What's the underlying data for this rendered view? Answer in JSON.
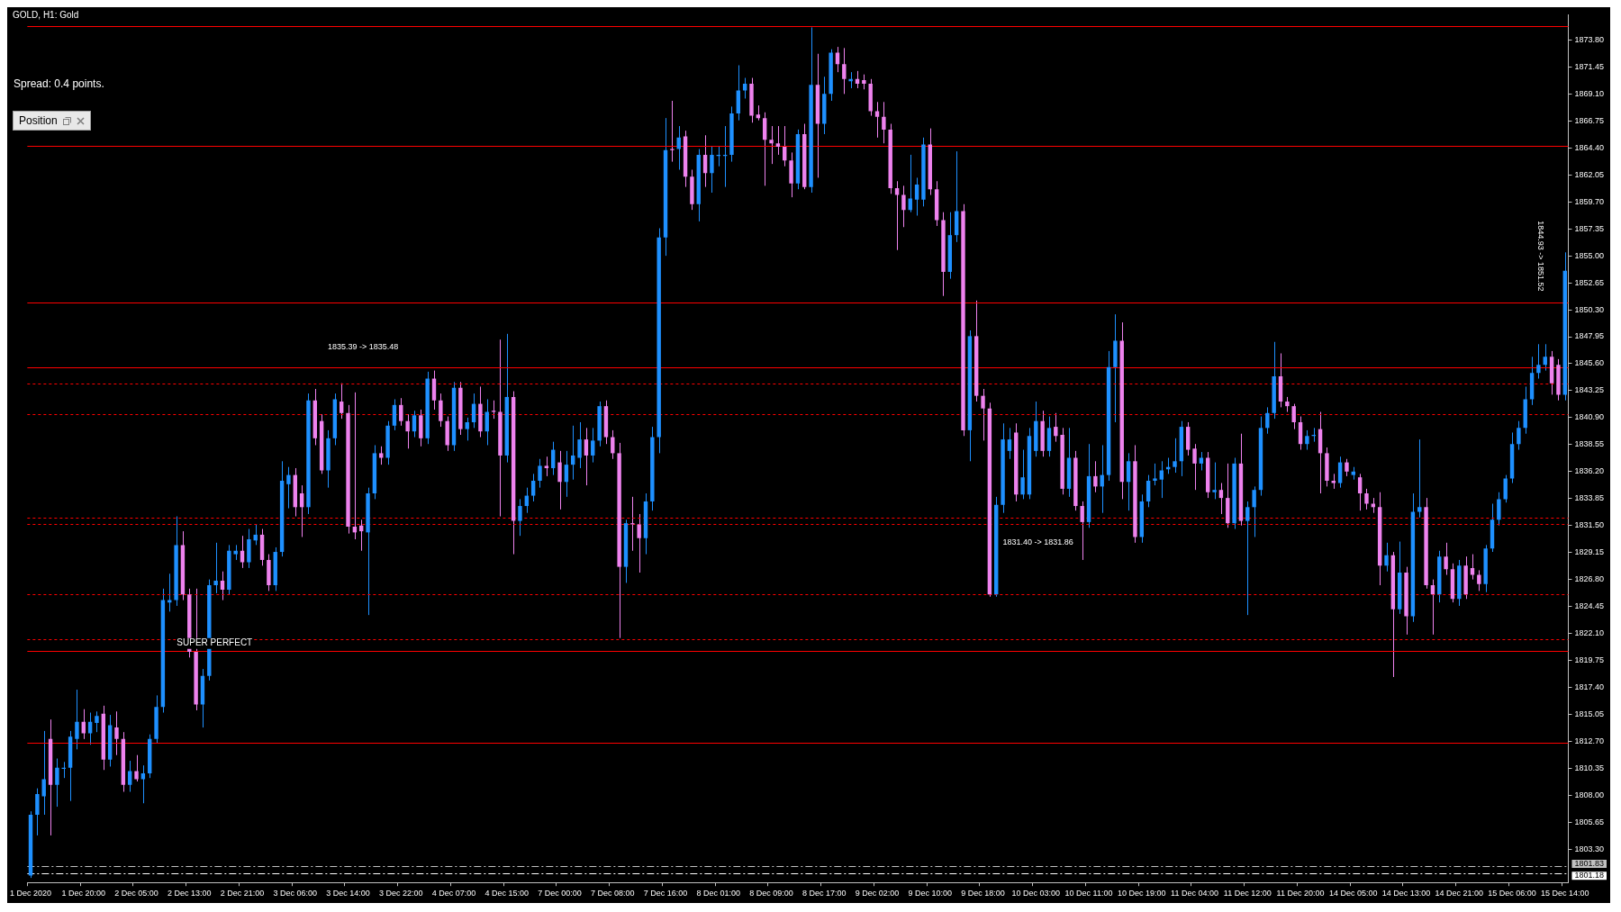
{
  "chart_data": {
    "type": "candlestick",
    "title": "GOLD, H1: Gold",
    "categories": [
      "1 Dec 2020",
      null,
      null,
      null,
      null,
      null,
      null,
      null,
      "1 Dec 20:00",
      null,
      null,
      null,
      null,
      null,
      null,
      null,
      "2 Dec 05:00",
      null,
      null,
      null,
      null,
      null,
      null,
      null,
      "2 Dec 13:00",
      null,
      null,
      null,
      null,
      null,
      null,
      null,
      "2 Dec 21:00",
      null,
      null,
      null,
      null,
      null,
      null,
      null,
      "3 Dec 06:00",
      null,
      null,
      null,
      null,
      null,
      null,
      null,
      "3 Dec 14:00",
      null,
      null,
      null,
      null,
      null,
      null,
      null,
      "3 Dec 22:00",
      null,
      null,
      null,
      null,
      null,
      null,
      null,
      "4 Dec 07:00",
      null,
      null,
      null,
      null,
      null,
      null,
      null,
      "4 Dec 15:00",
      null,
      null,
      null,
      null,
      null,
      null,
      null,
      "7 Dec 00:00",
      null,
      null,
      null,
      null,
      null,
      null,
      null,
      "7 Dec 08:00",
      null,
      null,
      null,
      null,
      null,
      null,
      null,
      "7 Dec 16:00",
      null,
      null,
      null,
      null,
      null,
      null,
      null,
      "8 Dec 01:00",
      null,
      null,
      null,
      null,
      null,
      null,
      null,
      "8 Dec 09:00",
      null,
      null,
      null,
      null,
      null,
      null,
      null,
      "8 Dec 17:00",
      null,
      null,
      null,
      null,
      null,
      null,
      null,
      "9 Dec 02:00",
      null,
      null,
      null,
      null,
      null,
      null,
      null,
      "9 Dec 10:00",
      null,
      null,
      null,
      null,
      null,
      null,
      null,
      "9 Dec 18:00",
      null,
      null,
      null,
      null,
      null,
      null,
      null,
      "10 Dec 03:00",
      null,
      null,
      null,
      null,
      null,
      null,
      null,
      "10 Dec 11:00",
      null,
      null,
      null,
      null,
      null,
      null,
      null,
      "10 Dec 19:00",
      null,
      null,
      null,
      null,
      null,
      null,
      null,
      "11 Dec 04:00",
      null,
      null,
      null,
      null,
      null,
      null,
      null,
      "11 Dec 12:00",
      null,
      null,
      null,
      null,
      null,
      null,
      null,
      "11 Dec 20:00",
      null,
      null,
      null,
      null,
      null,
      null,
      null,
      "14 Dec 05:00",
      null,
      null,
      null,
      null,
      null,
      null,
      null,
      "14 Dec 13:00",
      null,
      null,
      null,
      null,
      null,
      null,
      null,
      "14 Dec 21:00",
      null,
      null,
      null,
      null,
      null,
      null,
      null,
      "15 Dec 06:00",
      null,
      null,
      null,
      null,
      null,
      null,
      null,
      "15 Dec 14:00"
    ],
    "ohlc": [
      [
        1801.0,
        1806.6,
        1800.8,
        1806.3
      ],
      [
        1806.3,
        1808.6,
        1804.5,
        1808.1
      ],
      [
        1807.9,
        1813.6,
        1806.3,
        1809.4
      ],
      [
        1812.9,
        1814.6,
        1804.5,
        1808.9
      ],
      [
        1808.9,
        1811.2,
        1807.0,
        1810.4
      ],
      [
        1810.3,
        1810.9,
        1809.5,
        1810.4
      ],
      [
        1810.4,
        1813.6,
        1807.5,
        1813.1
      ],
      [
        1812.9,
        1817.2,
        1812.0,
        1814.4
      ],
      [
        1814.4,
        1815.5,
        1812.9,
        1813.4
      ],
      [
        1813.4,
        1815.2,
        1812.4,
        1814.4
      ],
      [
        1814.3,
        1815.3,
        1813.5,
        1814.9
      ],
      [
        1815.1,
        1815.8,
        1810.2,
        1811.1
      ],
      [
        1811.1,
        1815.0,
        1810.5,
        1814.1
      ],
      [
        1813.9,
        1815.3,
        1811.5,
        1812.9
      ],
      [
        1812.9,
        1813.5,
        1808.3,
        1808.9
      ],
      [
        1808.9,
        1811.0,
        1808.3,
        1810.1
      ],
      [
        1810.1,
        1811.5,
        1809.2,
        1809.4
      ],
      [
        1809.4,
        1810.6,
        1807.3,
        1809.9
      ],
      [
        1809.9,
        1813.3,
        1809.5,
        1812.9
      ],
      [
        1812.9,
        1816.7,
        1812.5,
        1815.7
      ],
      [
        1815.7,
        1826.0,
        1815.2,
        1825.0
      ],
      [
        1824.8,
        1827.3,
        1824.0,
        1825.0
      ],
      [
        1825.0,
        1832.3,
        1824.5,
        1829.8
      ],
      [
        1829.8,
        1831.0,
        1825.0,
        1825.5
      ],
      [
        1825.5,
        1826.0,
        1820.0,
        1820.5
      ],
      [
        1820.5,
        1826.0,
        1815.4,
        1815.9
      ],
      [
        1815.9,
        1819.0,
        1813.9,
        1818.4
      ],
      [
        1818.4,
        1826.8,
        1818.0,
        1826.3
      ],
      [
        1826.3,
        1830.0,
        1825.6,
        1826.7
      ],
      [
        1826.7,
        1827.5,
        1825.0,
        1825.9
      ],
      [
        1825.9,
        1829.8,
        1825.5,
        1829.3
      ],
      [
        1829.0,
        1829.8,
        1828.5,
        1829.3
      ],
      [
        1829.3,
        1830.6,
        1827.8,
        1828.3
      ],
      [
        1828.3,
        1831.2,
        1827.8,
        1830.3
      ],
      [
        1830.2,
        1831.6,
        1829.8,
        1830.7
      ],
      [
        1830.7,
        1831.2,
        1828.0,
        1828.5
      ],
      [
        1828.5,
        1829.0,
        1825.8,
        1826.3
      ],
      [
        1826.3,
        1829.6,
        1825.8,
        1829.2
      ],
      [
        1829.2,
        1837.1,
        1828.8,
        1835.4
      ],
      [
        1835.1,
        1836.6,
        1833.0,
        1835.9
      ],
      [
        1835.9,
        1836.5,
        1832.3,
        1833.1
      ],
      [
        1834.3,
        1835.0,
        1830.5,
        1833.1
      ],
      [
        1833.1,
        1843.0,
        1832.5,
        1842.4
      ],
      [
        1842.4,
        1843.4,
        1838.5,
        1839.1
      ],
      [
        1840.6,
        1841.2,
        1836.0,
        1836.3
      ],
      [
        1836.3,
        1839.8,
        1834.8,
        1839.1
      ],
      [
        1839.1,
        1843.0,
        1838.5,
        1842.5
      ],
      [
        1842.3,
        1843.9,
        1840.8,
        1841.3
      ],
      [
        1841.3,
        1842.0,
        1830.8,
        1831.4
      ],
      [
        1831.4,
        1843.1,
        1830.3,
        1830.9
      ],
      [
        1831.5,
        1832.0,
        1829.3,
        1831.0
      ],
      [
        1830.9,
        1834.8,
        1823.7,
        1834.3
      ],
      [
        1834.3,
        1838.5,
        1833.8,
        1837.8
      ],
      [
        1837.8,
        1838.4,
        1836.8,
        1837.4
      ],
      [
        1837.4,
        1840.6,
        1836.8,
        1840.2
      ],
      [
        1840.2,
        1842.5,
        1839.8,
        1842.0
      ],
      [
        1842.0,
        1842.6,
        1840.2,
        1840.6
      ],
      [
        1840.6,
        1841.2,
        1838.2,
        1839.7
      ],
      [
        1839.7,
        1841.5,
        1839.2,
        1841.1
      ],
      [
        1841.1,
        1841.6,
        1838.4,
        1839.1
      ],
      [
        1839.1,
        1844.9,
        1838.6,
        1844.3
      ],
      [
        1844.3,
        1845.0,
        1841.6,
        1842.4
      ],
      [
        1842.4,
        1843.0,
        1840.1,
        1840.6
      ],
      [
        1840.6,
        1841.0,
        1838.0,
        1838.5
      ],
      [
        1838.5,
        1844.0,
        1838.0,
        1843.5
      ],
      [
        1843.5,
        1844.0,
        1839.4,
        1839.9
      ],
      [
        1839.9,
        1840.9,
        1838.9,
        1840.5
      ],
      [
        1840.5,
        1843.0,
        1840.0,
        1842.1
      ],
      [
        1842.1,
        1843.6,
        1839.2,
        1839.7
      ],
      [
        1839.7,
        1842.5,
        1838.5,
        1841.4
      ],
      [
        1841.5,
        1842.4,
        1840.8,
        1841.4
      ],
      [
        1841.4,
        1847.7,
        1832.3,
        1837.6
      ],
      [
        1837.6,
        1848.2,
        1837.0,
        1842.7
      ],
      [
        1842.7,
        1843.2,
        1829.0,
        1831.9
      ],
      [
        1831.9,
        1833.8,
        1830.6,
        1833.2
      ],
      [
        1833.2,
        1834.8,
        1832.6,
        1834.1
      ],
      [
        1834.1,
        1836.0,
        1833.6,
        1835.4
      ],
      [
        1835.4,
        1837.3,
        1834.8,
        1836.7
      ],
      [
        1836.7,
        1837.5,
        1835.8,
        1836.5
      ],
      [
        1836.5,
        1838.8,
        1835.9,
        1838.1
      ],
      [
        1837.0,
        1838.0,
        1832.9,
        1835.3
      ],
      [
        1835.3,
        1838.0,
        1834.0,
        1836.8
      ],
      [
        1836.8,
        1840.2,
        1835.5,
        1837.6
      ],
      [
        1837.4,
        1840.5,
        1836.5,
        1839.0
      ],
      [
        1839.0,
        1840.0,
        1835.0,
        1837.6
      ],
      [
        1837.6,
        1840.0,
        1837.0,
        1838.9
      ],
      [
        1838.9,
        1842.3,
        1838.4,
        1841.9
      ],
      [
        1841.9,
        1842.4,
        1838.6,
        1839.2
      ],
      [
        1839.2,
        1839.8,
        1837.3,
        1837.8
      ],
      [
        1837.8,
        1838.7,
        1821.7,
        1827.9
      ],
      [
        1827.9,
        1832.0,
        1826.5,
        1831.7
      ],
      [
        1831.7,
        1834.0,
        1829.3,
        1831.6
      ],
      [
        1831.6,
        1832.5,
        1827.4,
        1830.4
      ],
      [
        1830.4,
        1834.3,
        1829.0,
        1833.6
      ],
      [
        1833.6,
        1840.1,
        1832.8,
        1839.2
      ],
      [
        1839.2,
        1857.4,
        1837.8,
        1856.6
      ],
      [
        1856.6,
        1867.0,
        1855.0,
        1864.2
      ],
      [
        1864.3,
        1868.5,
        1863.2,
        1864.2
      ],
      [
        1864.3,
        1866.3,
        1862.5,
        1865.3
      ],
      [
        1865.4,
        1865.9,
        1861.0,
        1861.9
      ],
      [
        1861.9,
        1862.5,
        1859.0,
        1859.5
      ],
      [
        1859.5,
        1864.3,
        1858.0,
        1863.8
      ],
      [
        1863.8,
        1865.5,
        1861.0,
        1862.2
      ],
      [
        1862.2,
        1864.5,
        1860.5,
        1863.8
      ],
      [
        1863.7,
        1864.5,
        1862.8,
        1863.8
      ],
      [
        1863.7,
        1866.3,
        1861.0,
        1863.8
      ],
      [
        1863.8,
        1868.0,
        1863.2,
        1867.4
      ],
      [
        1867.4,
        1871.6,
        1866.8,
        1869.4
      ],
      [
        1869.4,
        1870.5,
        1868.7,
        1870.0
      ],
      [
        1870.0,
        1870.5,
        1866.6,
        1867.2
      ],
      [
        1867.3,
        1868.1,
        1866.8,
        1867.0
      ],
      [
        1867.0,
        1867.5,
        1861.1,
        1865.1
      ],
      [
        1865.1,
        1866.3,
        1863.0,
        1864.8
      ],
      [
        1864.8,
        1866.3,
        1863.8,
        1864.5
      ],
      [
        1864.5,
        1866.3,
        1862.8,
        1863.3
      ],
      [
        1863.3,
        1864.0,
        1860.1,
        1861.3
      ],
      [
        1861.3,
        1866.0,
        1860.8,
        1865.6
      ],
      [
        1865.6,
        1866.5,
        1860.8,
        1861.0
      ],
      [
        1861.0,
        1874.9,
        1860.5,
        1869.9
      ],
      [
        1869.9,
        1872.6,
        1861.8,
        1866.5
      ],
      [
        1866.5,
        1870.6,
        1865.6,
        1869.1
      ],
      [
        1869.1,
        1873.0,
        1868.5,
        1872.7
      ],
      [
        1872.7,
        1873.2,
        1871.0,
        1871.7
      ],
      [
        1871.7,
        1873.1,
        1869.1,
        1870.4
      ],
      [
        1870.2,
        1871.0,
        1869.6,
        1870.4
      ],
      [
        1870.4,
        1871.1,
        1869.6,
        1870.0
      ],
      [
        1870.3,
        1870.8,
        1869.5,
        1870.0
      ],
      [
        1870.0,
        1870.4,
        1867.2,
        1867.6
      ],
      [
        1867.6,
        1868.4,
        1865.3,
        1867.1
      ],
      [
        1867.1,
        1868.4,
        1864.8,
        1866.0
      ],
      [
        1866.0,
        1866.5,
        1860.4,
        1860.9
      ],
      [
        1860.9,
        1861.5,
        1855.5,
        1860.3
      ],
      [
        1860.3,
        1861.1,
        1857.5,
        1859.0
      ],
      [
        1859.0,
        1863.8,
        1858.8,
        1860.0
      ],
      [
        1859.9,
        1861.8,
        1858.5,
        1861.2
      ],
      [
        1859.9,
        1865.3,
        1859.3,
        1864.7
      ],
      [
        1864.7,
        1866.1,
        1860.3,
        1860.8
      ],
      [
        1860.8,
        1861.5,
        1857.6,
        1858.1
      ],
      [
        1858.1,
        1858.8,
        1851.5,
        1853.6
      ],
      [
        1853.6,
        1858.8,
        1853.0,
        1856.8
      ],
      [
        1856.8,
        1864.1,
        1856.2,
        1858.9
      ],
      [
        1858.9,
        1859.5,
        1839.3,
        1839.8
      ],
      [
        1839.8,
        1848.5,
        1837.1,
        1848.0
      ],
      [
        1848.0,
        1851.1,
        1842.3,
        1842.8
      ],
      [
        1842.8,
        1843.4,
        1838.9,
        1841.7
      ],
      [
        1841.7,
        1842.2,
        1825.3,
        1825.5
      ],
      [
        1825.5,
        1834.0,
        1825.3,
        1833.3
      ],
      [
        1833.3,
        1840.4,
        1832.6,
        1839.0
      ],
      [
        1838.0,
        1840.0,
        1837.3,
        1839.0
      ],
      [
        1839.6,
        1840.4,
        1833.6,
        1834.2
      ],
      [
        1834.2,
        1838.1,
        1833.8,
        1835.7
      ],
      [
        1834.2,
        1840.0,
        1833.8,
        1839.3
      ],
      [
        1838.0,
        1842.3,
        1837.5,
        1840.6
      ],
      [
        1840.6,
        1841.5,
        1837.5,
        1838.0
      ],
      [
        1838.0,
        1841.0,
        1837.5,
        1840.0
      ],
      [
        1840.1,
        1841.3,
        1838.8,
        1839.3
      ],
      [
        1839.4,
        1840.0,
        1834.2,
        1834.7
      ],
      [
        1834.7,
        1840.0,
        1834.0,
        1837.4
      ],
      [
        1837.4,
        1838.0,
        1832.8,
        1833.2
      ],
      [
        1833.2,
        1833.6,
        1828.5,
        1831.8
      ],
      [
        1831.8,
        1838.6,
        1831.3,
        1835.8
      ],
      [
        1835.8,
        1837.1,
        1834.4,
        1834.9
      ],
      [
        1834.9,
        1838.5,
        1832.6,
        1835.9
      ],
      [
        1835.9,
        1846.7,
        1835.4,
        1845.3
      ],
      [
        1845.3,
        1849.9,
        1840.5,
        1847.6
      ],
      [
        1847.6,
        1849.2,
        1833.8,
        1835.3
      ],
      [
        1835.3,
        1837.8,
        1832.8,
        1837.1
      ],
      [
        1837.1,
        1838.5,
        1830.0,
        1830.5
      ],
      [
        1830.5,
        1834.2,
        1830.0,
        1833.6
      ],
      [
        1833.6,
        1835.9,
        1833.1,
        1835.4
      ],
      [
        1835.4,
        1836.9,
        1835.0,
        1835.6
      ],
      [
        1835.5,
        1837.1,
        1833.9,
        1836.3
      ],
      [
        1836.4,
        1837.4,
        1836.0,
        1836.6
      ],
      [
        1836.6,
        1839.1,
        1836.1,
        1837.1
      ],
      [
        1837.1,
        1840.6,
        1835.8,
        1840.1
      ],
      [
        1840.1,
        1840.5,
        1837.6,
        1838.1
      ],
      [
        1838.2,
        1838.6,
        1834.6,
        1836.9
      ],
      [
        1836.9,
        1837.9,
        1836.3,
        1837.4
      ],
      [
        1837.4,
        1837.9,
        1833.9,
        1834.4
      ],
      [
        1834.4,
        1837.0,
        1833.8,
        1834.6
      ],
      [
        1834.6,
        1835.2,
        1832.5,
        1833.9
      ],
      [
        1833.9,
        1836.9,
        1831.3,
        1831.7
      ],
      [
        1831.7,
        1837.4,
        1831.2,
        1836.9
      ],
      [
        1836.9,
        1839.5,
        1831.5,
        1831.9
      ],
      [
        1831.9,
        1833.6,
        1823.7,
        1833.1
      ],
      [
        1833.1,
        1834.9,
        1830.5,
        1834.6
      ],
      [
        1834.6,
        1841.0,
        1834.1,
        1840.0
      ],
      [
        1840.0,
        1841.8,
        1839.5,
        1841.3
      ],
      [
        1841.3,
        1847.5,
        1840.8,
        1844.5
      ],
      [
        1844.5,
        1846.5,
        1841.8,
        1842.3
      ],
      [
        1842.3,
        1842.7,
        1841.4,
        1841.9
      ],
      [
        1841.9,
        1842.1,
        1839.9,
        1840.5
      ],
      [
        1840.5,
        1841.0,
        1838.1,
        1838.6
      ],
      [
        1838.6,
        1839.8,
        1838.1,
        1839.3
      ],
      [
        1839.3,
        1840.0,
        1838.8,
        1839.4
      ],
      [
        1839.9,
        1841.4,
        1834.3,
        1837.8
      ],
      [
        1837.8,
        1838.3,
        1834.9,
        1835.4
      ],
      [
        1835.4,
        1836.0,
        1834.7,
        1835.2
      ],
      [
        1835.2,
        1837.5,
        1834.8,
        1837.0
      ],
      [
        1837.0,
        1837.3,
        1835.8,
        1836.2
      ],
      [
        1835.9,
        1836.6,
        1835.5,
        1836.2
      ],
      [
        1835.7,
        1836.0,
        1832.8,
        1834.3
      ],
      [
        1834.3,
        1834.7,
        1832.9,
        1833.4
      ],
      [
        1833.4,
        1833.9,
        1832.6,
        1833.1
      ],
      [
        1833.1,
        1834.4,
        1826.3,
        1828.0
      ],
      [
        1828.0,
        1830.0,
        1827.5,
        1828.9
      ],
      [
        1828.9,
        1829.2,
        1818.3,
        1824.2
      ],
      [
        1824.2,
        1830.1,
        1823.8,
        1827.4
      ],
      [
        1827.4,
        1827.9,
        1822.0,
        1823.6
      ],
      [
        1823.6,
        1834.3,
        1823.1,
        1832.7
      ],
      [
        1832.7,
        1839.0,
        1832.2,
        1833.1
      ],
      [
        1833.1,
        1833.9,
        1826.0,
        1826.3
      ],
      [
        1826.3,
        1826.8,
        1822.0,
        1825.5
      ],
      [
        1825.5,
        1829.3,
        1824.8,
        1828.8
      ],
      [
        1828.8,
        1830.0,
        1827.2,
        1827.7
      ],
      [
        1827.7,
        1828.2,
        1824.8,
        1825.1
      ],
      [
        1825.1,
        1828.5,
        1824.5,
        1828.0
      ],
      [
        1828.0,
        1828.8,
        1825.1,
        1825.5
      ],
      [
        1827.8,
        1829.0,
        1826.8,
        1827.2
      ],
      [
        1827.2,
        1827.6,
        1825.8,
        1826.4
      ],
      [
        1826.4,
        1829.8,
        1825.7,
        1829.5
      ],
      [
        1829.5,
        1833.4,
        1829.2,
        1832.0
      ],
      [
        1832.0,
        1834.4,
        1831.5,
        1833.8
      ],
      [
        1833.8,
        1835.9,
        1833.5,
        1835.6
      ],
      [
        1835.6,
        1839.6,
        1835.2,
        1838.6
      ],
      [
        1838.6,
        1840.6,
        1838.1,
        1840.0
      ],
      [
        1840.0,
        1843.6,
        1839.5,
        1842.5
      ],
      [
        1842.5,
        1846.2,
        1842.0,
        1844.8
      ],
      [
        1844.8,
        1847.3,
        1844.3,
        1845.5
      ],
      [
        1845.5,
        1847.3,
        1845.0,
        1846.2
      ],
      [
        1846.2,
        1846.7,
        1842.9,
        1843.9
      ],
      [
        1845.5,
        1846.0,
        1842.4,
        1842.9
      ],
      [
        1842.9,
        1855.3,
        1842.4,
        1853.7
      ]
    ],
    "colors": [
      "#1e90ff",
      "#1e90ff",
      "#1e90ff",
      "#ee82ee",
      "#1e90ff",
      "#1e90ff",
      "#1e90ff",
      "#1e90ff",
      "#ee82ee",
      "#1e90ff",
      "#1e90ff",
      "#ee82ee",
      "#1e90ff",
      "#ee82ee",
      "#ee82ee",
      "#1e90ff",
      "#ee82ee",
      "#1e90ff",
      "#1e90ff",
      "#1e90ff",
      "#1e90ff",
      "#1e90ff",
      "#1e90ff",
      "#ee82ee",
      "#ee82ee",
      "#ee82ee",
      "#1e90ff",
      "#1e90ff",
      "#1e90ff",
      "#ee82ee",
      "#1e90ff",
      "#1e90ff",
      "#ee82ee",
      "#1e90ff",
      "#1e90ff",
      "#ee82ee",
      "#ee82ee",
      "#1e90ff",
      "#1e90ff",
      "#1e90ff",
      "#ee82ee",
      "#ee82ee",
      "#1e90ff",
      "#ee82ee",
      "#ee82ee",
      "#1e90ff",
      "#1e90ff",
      "#ee82ee",
      "#ee82ee",
      "#ee82ee",
      "#ee82ee",
      "#1e90ff",
      "#1e90ff",
      "#ee82ee",
      "#1e90ff",
      "#1e90ff",
      "#ee82ee",
      "#ee82ee",
      "#1e90ff",
      "#ee82ee",
      "#1e90ff",
      "#ee82ee",
      "#ee82ee",
      "#ee82ee",
      "#1e90ff",
      "#ee82ee",
      "#1e90ff",
      "#1e90ff",
      "#ee82ee",
      "#1e90ff",
      "#ee82ee",
      "#ee82ee",
      "#1e90ff",
      "#ee82ee",
      "#1e90ff",
      "#1e90ff",
      "#1e90ff",
      "#1e90ff",
      "#ee82ee",
      "#1e90ff",
      "#ee82ee",
      "#1e90ff",
      "#1e90ff",
      "#1e90ff",
      "#ee82ee",
      "#1e90ff",
      "#1e90ff",
      "#ee82ee",
      "#ee82ee",
      "#ee82ee",
      "#1e90ff",
      "#ee82ee",
      "#ee82ee",
      "#1e90ff",
      "#1e90ff",
      "#1e90ff",
      "#1e90ff",
      "#ee82ee",
      "#1e90ff",
      "#ee82ee",
      "#ee82ee",
      "#1e90ff",
      "#ee82ee",
      "#1e90ff",
      "#1e90ff",
      "#1e90ff",
      "#1e90ff",
      "#1e90ff",
      "#1e90ff",
      "#ee82ee",
      "#ee82ee",
      "#ee82ee",
      "#ee82ee",
      "#ee82ee",
      "#ee82ee",
      "#ee82ee",
      "#1e90ff",
      "#ee82ee",
      "#1e90ff",
      "#ee82ee",
      "#1e90ff",
      "#1e90ff",
      "#ee82ee",
      "#ee82ee",
      "#1e90ff",
      "#ee82ee",
      "#ee82ee",
      "#ee82ee",
      "#ee82ee",
      "#ee82ee",
      "#ee82ee",
      "#ee82ee",
      "#ee82ee",
      "#1e90ff",
      "#1e90ff",
      "#1e90ff",
      "#ee82ee",
      "#ee82ee",
      "#ee82ee",
      "#1e90ff",
      "#1e90ff",
      "#ee82ee",
      "#1e90ff",
      "#ee82ee",
      "#ee82ee",
      "#ee82ee",
      "#1e90ff",
      "#1e90ff",
      "#1e90ff",
      "#ee82ee",
      "#1e90ff",
      "#1e90ff",
      "#1e90ff",
      "#ee82ee",
      "#1e90ff",
      "#ee82ee",
      "#ee82ee",
      "#1e90ff",
      "#ee82ee",
      "#ee82ee",
      "#1e90ff",
      "#ee82ee",
      "#1e90ff",
      "#1e90ff",
      "#1e90ff",
      "#ee82ee",
      "#1e90ff",
      "#ee82ee",
      "#1e90ff",
      "#1e90ff",
      "#1e90ff",
      "#1e90ff",
      "#1e90ff",
      "#1e90ff",
      "#1e90ff",
      "#ee82ee",
      "#ee82ee",
      "#1e90ff",
      "#ee82ee",
      "#1e90ff",
      "#ee82ee",
      "#ee82ee",
      "#1e90ff",
      "#ee82ee",
      "#1e90ff",
      "#1e90ff",
      "#1e90ff",
      "#1e90ff",
      "#1e90ff",
      "#ee82ee",
      "#ee82ee",
      "#ee82ee",
      "#ee82ee",
      "#1e90ff",
      "#1e90ff",
      "#ee82ee",
      "#ee82ee",
      "#ee82ee",
      "#1e90ff",
      "#ee82ee",
      "#1e90ff",
      "#ee82ee",
      "#ee82ee",
      "#ee82ee",
      "#ee82ee",
      "#1e90ff",
      "#ee82ee",
      "#1e90ff",
      "#ee82ee",
      "#1e90ff",
      "#1e90ff",
      "#ee82ee",
      "#ee82ee",
      "#1e90ff",
      "#ee82ee",
      "#ee82ee",
      "#1e90ff",
      "#ee82ee",
      "#ee82ee",
      "#ee82ee",
      "#1e90ff",
      "#1e90ff",
      "#1e90ff",
      "#1e90ff",
      "#1e90ff",
      "#1e90ff",
      "#1e90ff",
      "#1e90ff",
      "#1e90ff",
      "#1e90ff",
      "#ee82ee",
      "#ee82ee",
      "#1e90ff"
    ],
    "ylim": [
      1800.4,
      1876.0
    ],
    "yticks": [
      {
        "value": 1873.8,
        "label": "1873.80"
      },
      {
        "value": 1871.45,
        "label": "1871.45"
      },
      {
        "value": 1869.1,
        "label": "1869.10"
      },
      {
        "value": 1866.75,
        "label": "1866.75"
      },
      {
        "value": 1864.4,
        "label": "1864.40"
      },
      {
        "value": 1862.05,
        "label": "1862.05"
      },
      {
        "value": 1859.7,
        "label": "1859.70"
      },
      {
        "value": 1857.35,
        "label": "1857.35"
      },
      {
        "value": 1855,
        "label": "1855.00"
      },
      {
        "value": 1852.65,
        "label": "1852.65"
      },
      {
        "value": 1850.3,
        "label": "1850.30"
      },
      {
        "value": 1847.95,
        "label": "1847.95"
      },
      {
        "value": 1845.6,
        "label": "1845.60"
      },
      {
        "value": 1843.25,
        "label": "1843.25"
      },
      {
        "value": 1840.9,
        "label": "1840.90"
      },
      {
        "value": 1838.55,
        "label": "1838.55"
      },
      {
        "value": 1836.2,
        "label": "1836.20"
      },
      {
        "value": 1833.85,
        "label": "1833.85"
      },
      {
        "value": 1831.5,
        "label": "1831.50"
      },
      {
        "value": 1829.15,
        "label": "1829.15"
      },
      {
        "value": 1826.8,
        "label": "1826.80"
      },
      {
        "value": 1824.45,
        "label": "1824.45"
      },
      {
        "value": 1822.1,
        "label": "1822.10"
      },
      {
        "value": 1819.75,
        "label": "1819.75"
      },
      {
        "value": 1817.4,
        "label": "1817.40"
      },
      {
        "value": 1815.05,
        "label": "1815.05"
      },
      {
        "value": 1812.7,
        "label": "1812.70"
      },
      {
        "value": 1810.35,
        "label": "1810.35"
      },
      {
        "value": 1808,
        "label": "1808.00"
      },
      {
        "value": 1805.65,
        "label": "1805.65"
      },
      {
        "value": 1803.3,
        "label": "1803.30"
      }
    ],
    "ref_lines": [
      {
        "axis": "y",
        "value": 1875.0,
        "color": "#ff0000",
        "line_style": "solid"
      },
      {
        "axis": "y",
        "value": 1864.6,
        "color": "#ff0000",
        "line_style": "solid"
      },
      {
        "axis": "y",
        "value": 1850.9,
        "color": "#ff0000",
        "line_style": "solid"
      },
      {
        "axis": "y",
        "value": 1845.3,
        "color": "#ff0000",
        "line_style": "solid"
      },
      {
        "axis": "y",
        "value": 1820.6,
        "label": "SUPER PERFECT",
        "color": "#ff0000",
        "line_style": "solid"
      },
      {
        "axis": "y",
        "value": 1812.6,
        "color": "#ff0000",
        "line_style": "solid"
      },
      {
        "axis": "y",
        "value": 1843.9,
        "color": "#ff0000",
        "line_style": "dotted"
      },
      {
        "axis": "y",
        "value": 1841.2,
        "color": "#ff0000",
        "line_style": "dotted"
      },
      {
        "axis": "y",
        "value": 1832.2,
        "color": "#ff0000",
        "line_style": "dotted"
      },
      {
        "axis": "y",
        "value": 1831.65,
        "color": "#ff0000",
        "line_style": "dotted"
      },
      {
        "axis": "y",
        "value": 1825.5,
        "color": "#ff0000",
        "line_style": "dotted"
      },
      {
        "axis": "y",
        "value": 1821.6,
        "color": "#ff0000",
        "line_style": "dotted"
      },
      {
        "axis": "y",
        "value": 1801.83,
        "label": "1801.83",
        "color": "#c0c0c0",
        "line_style": "dashed"
      },
      {
        "axis": "y",
        "value": 1801.18,
        "label": "1801.18",
        "color": "#ffffff",
        "line_style": "dashed"
      }
    ],
    "annotations": [
      "Spread: 0.4 points.",
      "Position",
      "1835.39 -> 1835.48",
      "1831.40 -> 1831.86",
      "1844.93 -> 1851.52"
    ]
  }
}
